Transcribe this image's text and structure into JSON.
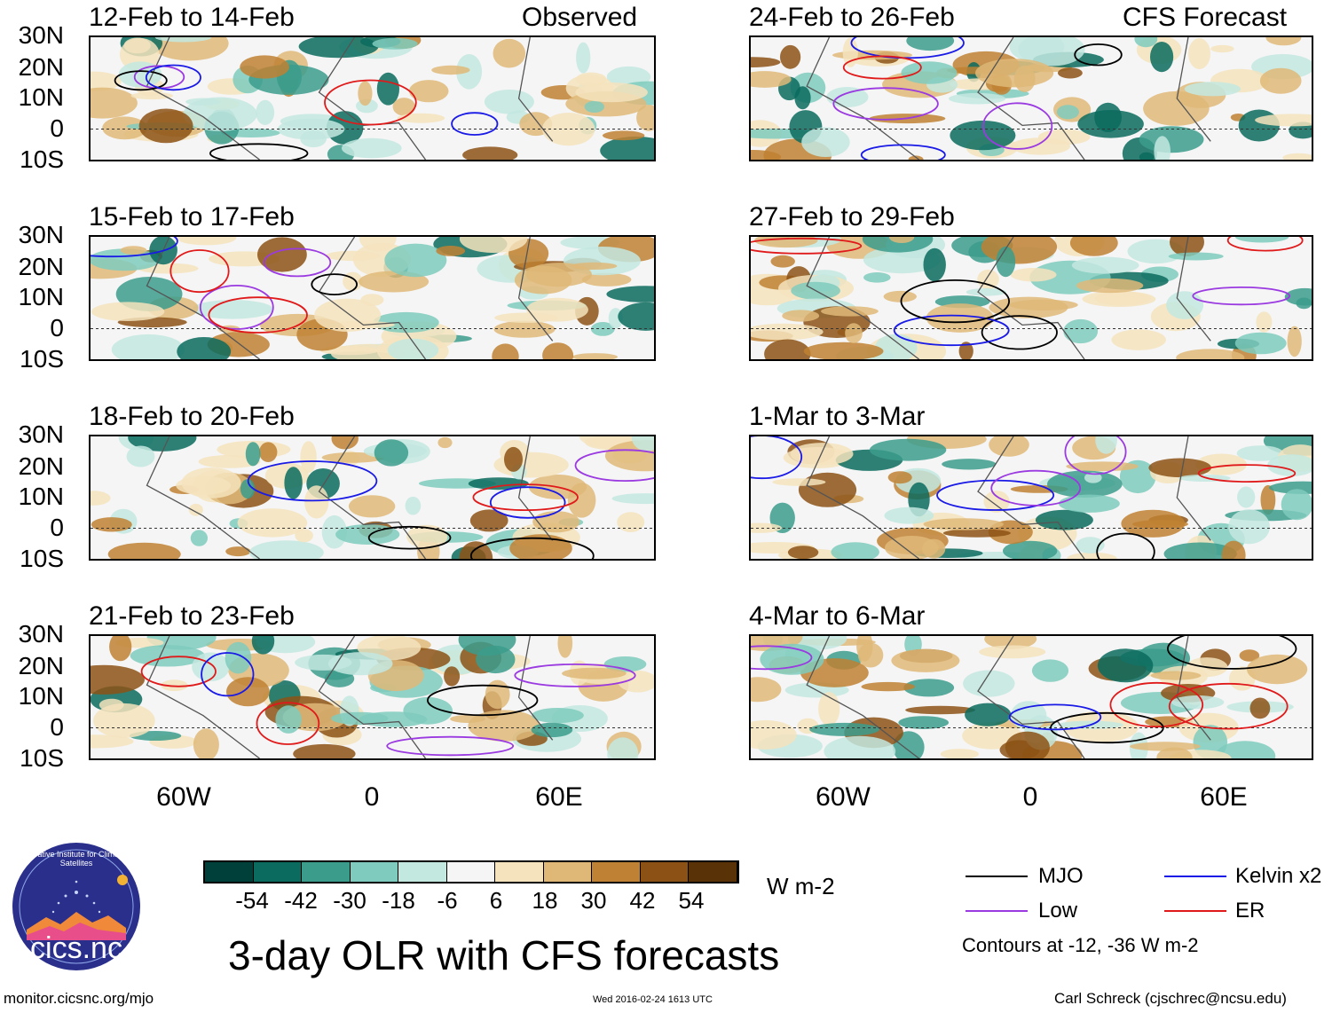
{
  "panels": [
    {
      "title": "12-Feb to 14-Feb",
      "tag": "Observed"
    },
    {
      "title": "24-Feb to 26-Feb",
      "tag": "CFS Forecast"
    },
    {
      "title": "15-Feb to 17-Feb",
      "tag": ""
    },
    {
      "title": "27-Feb to 29-Feb",
      "tag": ""
    },
    {
      "title": "18-Feb to 20-Feb",
      "tag": ""
    },
    {
      "title": "1-Mar to 3-Mar",
      "tag": ""
    },
    {
      "title": "21-Feb to 23-Feb",
      "tag": ""
    },
    {
      "title": "4-Mar to 6-Mar",
      "tag": ""
    }
  ],
  "lat_labels": [
    "30N",
    "20N",
    "10N",
    "0",
    "10S"
  ],
  "lon_labels": [
    "60W",
    "0",
    "60E"
  ],
  "colorbar": {
    "colors": [
      "#00403a",
      "#0a6b5e",
      "#3b9c8c",
      "#7fcbbd",
      "#c3e8e0",
      "#f5f5f5",
      "#f5e3bd",
      "#dfb878",
      "#bf8133",
      "#8c5215",
      "#5a3208"
    ],
    "labels": [
      "-54",
      "-42",
      "-30",
      "-18",
      "-6",
      "6",
      "18",
      "30",
      "42",
      "54"
    ],
    "units": "W m-2"
  },
  "legend": {
    "items": [
      {
        "label": "MJO",
        "color": "#000000"
      },
      {
        "label": "Kelvin x2",
        "color": "#1a1ae6"
      },
      {
        "label": "Low",
        "color": "#9a3ae0"
      },
      {
        "label": "ER",
        "color": "#e01a1a"
      }
    ],
    "contours_note": "Contours at -12, -36 W m-2"
  },
  "logo_text": "cics.nc",
  "logo_ring_text": "Cooperative Institute for Climate and Satellites",
  "main_title": "3-day OLR with CFS forecasts",
  "footer": {
    "url": "monitor.cicsnc.org/mjo",
    "timestamp": "Wed 2016-02-24 1613 UTC",
    "author": "Carl Schreck (cjschrec@ncsu.edu)"
  }
}
